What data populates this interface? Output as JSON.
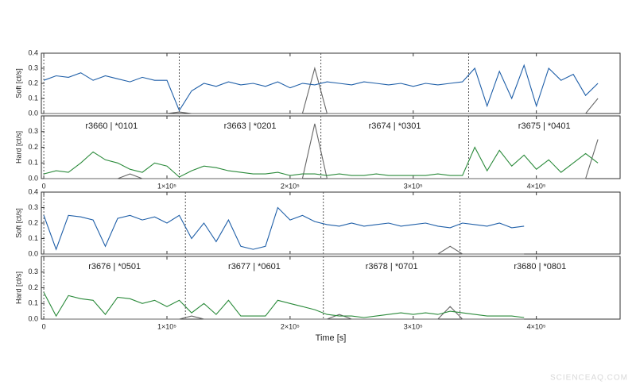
{
  "chart_data": [
    {
      "type": "line",
      "ylabel": "Soft [ct/s]",
      "xlim": [
        -2000,
        468000
      ],
      "ylim": [
        0,
        0.4
      ],
      "yticks": [
        {
          "value": 0,
          "label": "0.0"
        },
        0.1,
        0.2,
        0.3,
        0.4
      ],
      "x": [
        0,
        10000,
        20000,
        30000,
        40000,
        50000,
        60000,
        70000,
        80000,
        90000,
        100000,
        110000,
        120000,
        130000,
        140000,
        150000,
        160000,
        170000,
        180000,
        190000,
        200000,
        210000,
        220000,
        230000,
        240000,
        250000,
        260000,
        270000,
        280000,
        290000,
        300000,
        310000,
        320000,
        330000,
        340000,
        350000,
        360000,
        370000,
        380000,
        390000,
        400000,
        410000,
        420000,
        430000,
        440000,
        450000
      ],
      "series": [
        {
          "color": "#1f5fa8",
          "values": [
            0.22,
            0.25,
            0.24,
            0.27,
            0.22,
            0.25,
            0.23,
            0.21,
            0.24,
            0.22,
            0.22,
            0.02,
            0.15,
            0.2,
            0.18,
            0.21,
            0.19,
            0.2,
            0.18,
            0.21,
            0.17,
            0.2,
            0.19,
            0.21,
            0.2,
            0.19,
            0.21,
            0.2,
            0.19,
            0.2,
            0.18,
            0.2,
            0.19,
            0.2,
            0.21,
            0.3,
            0.05,
            0.28,
            0.1,
            0.32,
            0.05,
            0.3,
            0.22,
            0.26,
            0.12,
            0.2
          ]
        },
        {
          "color": "#666666",
          "values": [
            0,
            0,
            0,
            0,
            0,
            0,
            0,
            0,
            0,
            0,
            0,
            0.01,
            0,
            0,
            0,
            0,
            0,
            0,
            0,
            0,
            0,
            0,
            0.3,
            0,
            0,
            0,
            0,
            0,
            0,
            0,
            0,
            0,
            0,
            0,
            0,
            0,
            0,
            0,
            0,
            0,
            0,
            0,
            0,
            0,
            0,
            0.1
          ]
        }
      ]
    },
    {
      "type": "line",
      "ylabel": "Hard [ct/s]",
      "xlim": [
        -2000,
        468000
      ],
      "ylim": [
        0,
        0.4
      ],
      "yticks": [
        {
          "value": 0,
          "label": "0.0"
        },
        0.1,
        0.2,
        0.3
      ],
      "xticks": [
        0,
        {
          "value": 100000,
          "label": "1×10⁵"
        },
        {
          "value": 200000,
          "label": "2×10⁵"
        },
        {
          "value": 300000,
          "label": "3×10⁵"
        },
        {
          "value": 400000,
          "label": "4×10⁵"
        }
      ],
      "boundaries": [
        0,
        110000,
        225000,
        345000
      ],
      "labels": [
        "r3660 | *0101",
        "r3663 | *0201",
        "r3674 | *0301",
        "r3675 | *0401"
      ],
      "x": [
        0,
        10000,
        20000,
        30000,
        40000,
        50000,
        60000,
        70000,
        80000,
        90000,
        100000,
        110000,
        120000,
        130000,
        140000,
        150000,
        160000,
        170000,
        180000,
        190000,
        200000,
        210000,
        220000,
        230000,
        240000,
        250000,
        260000,
        270000,
        280000,
        290000,
        300000,
        310000,
        320000,
        330000,
        340000,
        350000,
        360000,
        370000,
        380000,
        390000,
        400000,
        410000,
        420000,
        430000,
        440000,
        450000
      ],
      "series": [
        {
          "color": "#2a8a3a",
          "values": [
            0.03,
            0.05,
            0.04,
            0.1,
            0.17,
            0.12,
            0.1,
            0.06,
            0.04,
            0.1,
            0.08,
            0.01,
            0.05,
            0.08,
            0.07,
            0.05,
            0.04,
            0.03,
            0.03,
            0.04,
            0.02,
            0.03,
            0.03,
            0.02,
            0.03,
            0.02,
            0.02,
            0.03,
            0.02,
            0.02,
            0.02,
            0.02,
            0.03,
            0.02,
            0.02,
            0.2,
            0.05,
            0.18,
            0.08,
            0.15,
            0.06,
            0.12,
            0.04,
            0.1,
            0.16,
            0.1
          ]
        },
        {
          "color": "#666666",
          "values": [
            0,
            0,
            0,
            0,
            0,
            0,
            0,
            0.03,
            0,
            0,
            0,
            0,
            0,
            0,
            0,
            0,
            0,
            0,
            0,
            0,
            0,
            0,
            0.35,
            0,
            0,
            0,
            0,
            0,
            0,
            0,
            0,
            0,
            0,
            0,
            0,
            0,
            0,
            0,
            0,
            0,
            0,
            0,
            0,
            0,
            0,
            0.25
          ]
        }
      ]
    },
    {
      "type": "line",
      "ylabel": "Soft [ct/s]",
      "xlim": [
        -2000,
        468000
      ],
      "ylim": [
        0,
        0.4
      ],
      "yticks": [
        {
          "value": 0,
          "label": "0.0"
        },
        0.1,
        0.2,
        0.3,
        0.4
      ],
      "x": [
        0,
        10000,
        20000,
        30000,
        40000,
        50000,
        60000,
        70000,
        80000,
        90000,
        100000,
        110000,
        120000,
        130000,
        140000,
        150000,
        160000,
        170000,
        180000,
        190000,
        200000,
        210000,
        220000,
        230000,
        240000,
        250000,
        260000,
        270000,
        280000,
        290000,
        300000,
        310000,
        320000,
        330000,
        340000,
        350000,
        360000,
        370000,
        380000,
        390000
      ],
      "series": [
        {
          "color": "#1f5fa8",
          "values": [
            0.25,
            0.03,
            0.25,
            0.24,
            0.22,
            0.05,
            0.23,
            0.25,
            0.22,
            0.24,
            0.2,
            0.25,
            0.1,
            0.2,
            0.08,
            0.22,
            0.05,
            0.03,
            0.05,
            0.3,
            0.22,
            0.25,
            0.21,
            0.19,
            0.18,
            0.2,
            0.18,
            0.19,
            0.2,
            0.18,
            0.19,
            0.2,
            0.18,
            0.17,
            0.2,
            0.19,
            0.18,
            0.2,
            0.17,
            0.18
          ]
        },
        {
          "color": "#666666",
          "values": [
            0,
            0,
            0,
            0,
            0,
            0,
            0,
            0,
            0,
            0,
            0,
            0,
            0,
            0,
            0,
            0,
            0,
            0,
            0,
            0,
            0,
            0,
            0,
            0,
            0,
            0,
            0,
            0,
            0,
            0,
            0,
            0,
            0,
            0.05,
            0,
            0,
            0,
            0,
            0,
            0
          ]
        }
      ]
    },
    {
      "type": "line",
      "ylabel": "Hard [ct/s]",
      "xlabel": "Time [s]",
      "xlim": [
        -2000,
        468000
      ],
      "ylim": [
        0,
        0.4
      ],
      "yticks": [
        {
          "value": 0,
          "label": "0.0"
        },
        0.1,
        0.2,
        0.3
      ],
      "xticks": [
        0,
        {
          "value": 100000,
          "label": "1×10⁵"
        },
        {
          "value": 200000,
          "label": "2×10⁵"
        },
        {
          "value": 300000,
          "label": "3×10⁵"
        },
        {
          "value": 400000,
          "label": "4×10⁵"
        }
      ],
      "boundaries": [
        0,
        115000,
        227000,
        338000
      ],
      "labels": [
        "r3676 | *0501",
        "r3677 | *0601",
        "r3678 | *0701",
        "r3680 | *0801"
      ],
      "x": [
        0,
        10000,
        20000,
        30000,
        40000,
        50000,
        60000,
        70000,
        80000,
        90000,
        100000,
        110000,
        120000,
        130000,
        140000,
        150000,
        160000,
        170000,
        180000,
        190000,
        200000,
        210000,
        220000,
        230000,
        240000,
        250000,
        260000,
        270000,
        280000,
        290000,
        300000,
        310000,
        320000,
        330000,
        340000,
        350000,
        360000,
        370000,
        380000,
        390000
      ],
      "series": [
        {
          "color": "#2a8a3a",
          "values": [
            0.17,
            0.02,
            0.15,
            0.13,
            0.12,
            0.03,
            0.14,
            0.13,
            0.1,
            0.12,
            0.08,
            0.12,
            0.04,
            0.1,
            0.03,
            0.12,
            0.02,
            0.02,
            0.02,
            0.12,
            0.1,
            0.08,
            0.06,
            0.03,
            0.02,
            0.02,
            0.01,
            0.02,
            0.03,
            0.04,
            0.03,
            0.04,
            0.03,
            0.05,
            0.04,
            0.03,
            0.02,
            0.02,
            0.02,
            0.01
          ]
        },
        {
          "color": "#666666",
          "values": [
            0,
            0,
            0,
            0,
            0,
            0,
            0,
            0,
            0,
            0,
            0,
            0,
            0.02,
            0,
            0,
            0,
            0,
            0,
            0,
            0,
            0,
            0,
            0,
            0,
            0.03,
            0,
            0,
            0,
            0,
            0,
            0,
            0,
            0,
            0.08,
            0,
            0,
            0,
            0,
            0,
            0
          ]
        }
      ]
    }
  ],
  "watermark": "SCIENCEAQ.COM"
}
